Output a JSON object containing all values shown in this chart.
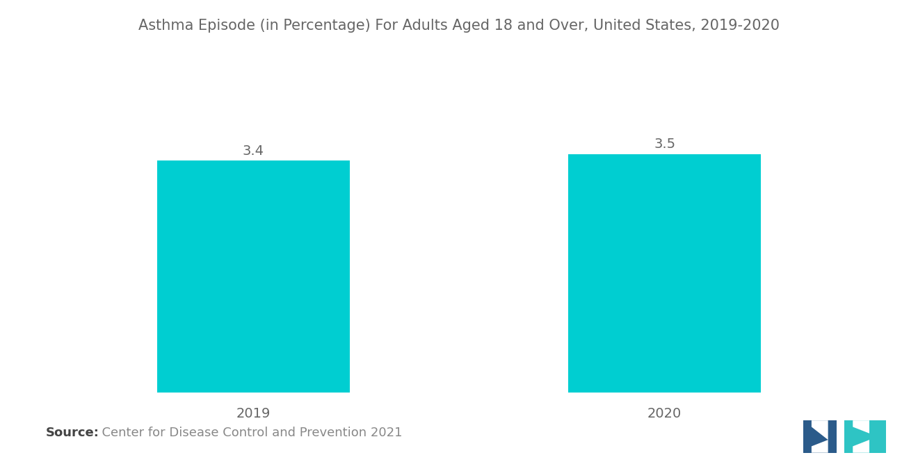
{
  "title": "Asthma Episode (in Percentage) For Adults Aged 18 and Over, United States, 2019-2020",
  "categories": [
    "2019",
    "2020"
  ],
  "values": [
    3.4,
    3.5
  ],
  "bar_color": "#00CED1",
  "background_color": "#ffffff",
  "value_labels": [
    "3.4",
    "3.5"
  ],
  "source_bold": "Source:",
  "source_rest": "  Center for Disease Control and Prevention 2021",
  "title_fontsize": 15,
  "label_fontsize": 14,
  "value_fontsize": 14,
  "source_fontsize": 13,
  "bar_width": 0.75,
  "bar_gap": 1.6,
  "ylim": [
    0,
    4.2
  ],
  "title_color": "#666666",
  "label_color": "#666666",
  "value_color": "#666666",
  "source_color": "#888888",
  "logo_left_color": "#2B5B8A",
  "logo_right_color": "#2EC4C4"
}
